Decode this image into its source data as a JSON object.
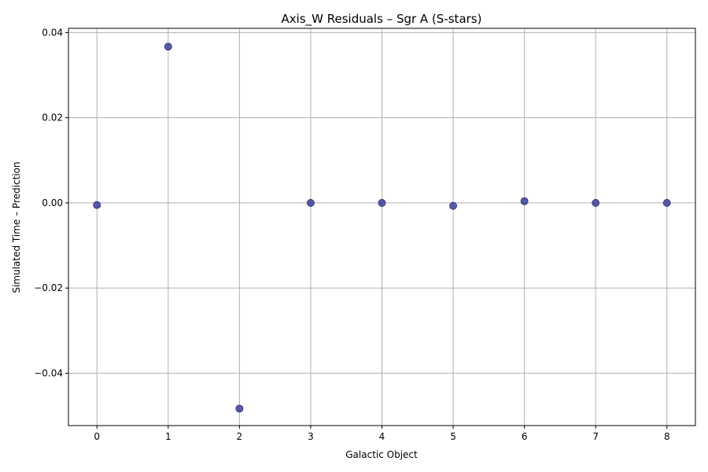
{
  "chart_data": {
    "type": "scatter",
    "title": "Axis_W Residuals – Sgr A (S-stars)",
    "xlabel": "Galactic Object",
    "ylabel": "Simulated Time – Prediction",
    "x": [
      0,
      1,
      2,
      3,
      4,
      5,
      6,
      7,
      8
    ],
    "y": [
      -0.0005,
      0.0367,
      -0.0483,
      0.0,
      0.0,
      -0.0007,
      0.0004,
      0.0,
      0.0
    ],
    "xlim": [
      -0.4,
      8.4
    ],
    "ylim": [
      -0.0523,
      0.041
    ],
    "xticks": [
      0,
      1,
      2,
      3,
      4,
      5,
      6,
      7,
      8
    ],
    "xtick_labels": [
      "0",
      "1",
      "2",
      "3",
      "4",
      "5",
      "6",
      "7",
      "8"
    ],
    "yticks": [
      -0.04,
      -0.02,
      0.0,
      0.02,
      0.04
    ],
    "ytick_labels": [
      "−0.04",
      "−0.02",
      "0.00",
      "0.02",
      "0.04"
    ],
    "grid": true,
    "marker_color": "#3a3f9c",
    "marker_edge_color": "#23286e",
    "grid_color": "#b0b0b0"
  }
}
